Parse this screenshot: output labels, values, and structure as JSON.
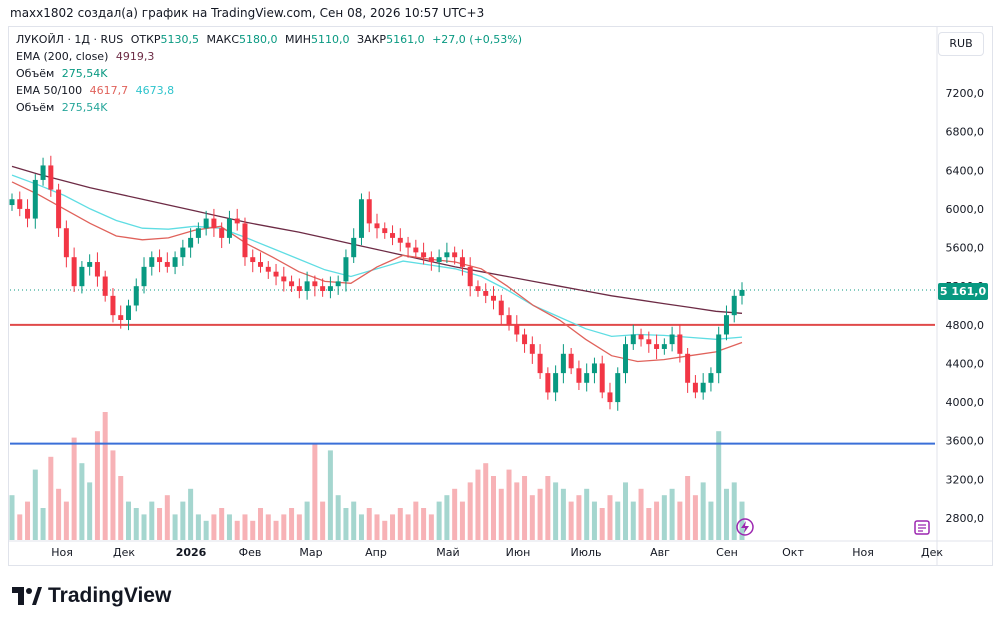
{
  "attribution": "maxx1802 создал(а) график на TradingView.com, Сен 08, 2026 10:57 UTC+3",
  "legend": {
    "symbol": "ЛУКОЙЛ · 1Д · RUS",
    "open_label": "ОТКР",
    "open": "5130,5",
    "high_label": "МАКС",
    "high": "5180,0",
    "low_label": "МИН",
    "low": "5110,0",
    "close_label": "ЗАКР",
    "close": "5161,0",
    "change": "+27,0 (+0,53%)",
    "ema200_label": "EMA (200, close)",
    "ema200_value": "4919,3",
    "volume_label": "Объём",
    "volume_value": "275,54K",
    "ema50_label": "EMA 50/100",
    "ema50_value": "4617,7",
    "ema100_value": "4673,8",
    "volume2_label": "Объём",
    "volume2_value": "275,54K"
  },
  "currency": "RUB",
  "last_price_badge": "5 161,0",
  "footer": {
    "brand": "TradingView"
  },
  "colors": {
    "up": "#089981",
    "down": "#f23645",
    "ema200": "#6d2b45",
    "ema50": "#e0625b",
    "ema100": "#5fdde3",
    "support_red": "#e04a4a",
    "support_blue": "#3a6fd8",
    "volume_up": "#a5d6cf",
    "volume_down": "#f7b2b6"
  },
  "chart_data": {
    "type": "candlestick",
    "ylim": [
      2600,
      7600
    ],
    "y_ticks": [
      "2800,0",
      "3200,0",
      "3600,0",
      "4000,0",
      "4400,0",
      "4800,0",
      "5200,0",
      "5600,0",
      "6000,0",
      "6400,0",
      "6800,0",
      "7200,0"
    ],
    "y_tick_values": [
      2800,
      3200,
      3600,
      4000,
      4400,
      4800,
      5200,
      5600,
      6000,
      6400,
      6800,
      7200
    ],
    "x_labels": [
      "Ноя",
      "Дек",
      "2026",
      "Фев",
      "Мар",
      "Апр",
      "Май",
      "Июн",
      "Июль",
      "Авг",
      "Сен",
      "Окт",
      "Ноя",
      "Дек"
    ],
    "horizontal_lines": [
      {
        "value": 4800,
        "color_key": "support_red"
      },
      {
        "value": 3570,
        "color_key": "support_blue"
      }
    ],
    "last_close": 5161,
    "close_series": [
      6100,
      6000,
      5900,
      6300,
      6450,
      6200,
      5800,
      5500,
      5200,
      5400,
      5450,
      5300,
      5100,
      4900,
      4850,
      5000,
      5200,
      5400,
      5500,
      5450,
      5400,
      5500,
      5600,
      5700,
      5800,
      5900,
      5800,
      5700,
      5900,
      5850,
      5500,
      5450,
      5400,
      5350,
      5300,
      5250,
      5200,
      5150,
      5250,
      5200,
      5150,
      5200,
      5250,
      5500,
      5700,
      6100,
      5850,
      5800,
      5750,
      5700,
      5650,
      5600,
      5550,
      5500,
      5450,
      5500,
      5550,
      5500,
      5400,
      5200,
      5150,
      5100,
      5050,
      4900,
      4800,
      4700,
      4600,
      4500,
      4300,
      4100,
      4300,
      4500,
      4350,
      4200,
      4300,
      4400,
      4100,
      4000,
      4300,
      4600,
      4700,
      4650,
      4600,
      4550,
      4600,
      4700,
      4500,
      4200,
      4100,
      4200,
      4300,
      4700,
      4900,
      5100,
      5161
    ],
    "ema200": [
      6440,
      6360,
      6290,
      6220,
      6160,
      6100,
      6040,
      5980,
      5920,
      5860,
      5810,
      5760,
      5700,
      5640,
      5580,
      5520,
      5460,
      5400,
      5350,
      5300,
      5250,
      5200,
      5150,
      5100,
      5060,
      5020,
      4980,
      4940,
      4919
    ],
    "ema50": [
      6280,
      6150,
      6000,
      5850,
      5720,
      5680,
      5700,
      5780,
      5820,
      5640,
      5500,
      5350,
      5250,
      5230,
      5400,
      5520,
      5480,
      5450,
      5380,
      5200,
      5000,
      4850,
      4650,
      4480,
      4420,
      4440,
      4480,
      4520,
      4617
    ],
    "ema100": [
      6350,
      6250,
      6140,
      6000,
      5880,
      5800,
      5790,
      5820,
      5800,
      5700,
      5590,
      5480,
      5370,
      5300,
      5380,
      5460,
      5420,
      5380,
      5300,
      5160,
      5000,
      4880,
      4760,
      4680,
      4700,
      4690,
      4670,
      4650,
      4673
    ],
    "volume_series": [
      0.35,
      0.2,
      0.3,
      0.55,
      0.25,
      0.65,
      0.4,
      0.3,
      0.8,
      0.6,
      0.45,
      0.85,
      1.0,
      0.7,
      0.5,
      0.3,
      0.25,
      0.2,
      0.3,
      0.25,
      0.35,
      0.2,
      0.3,
      0.4,
      0.2,
      0.15,
      0.2,
      0.25,
      0.2,
      0.15,
      0.2,
      0.15,
      0.25,
      0.2,
      0.15,
      0.2,
      0.25,
      0.2,
      0.3,
      0.75,
      0.3,
      0.7,
      0.35,
      0.25,
      0.3,
      0.2,
      0.25,
      0.2,
      0.15,
      0.2,
      0.25,
      0.2,
      0.3,
      0.25,
      0.2,
      0.3,
      0.35,
      0.4,
      0.3,
      0.45,
      0.55,
      0.6,
      0.5,
      0.4,
      0.55,
      0.45,
      0.5,
      0.35,
      0.4,
      0.5,
      0.45,
      0.4,
      0.3,
      0.35,
      0.4,
      0.3,
      0.25,
      0.35,
      0.3,
      0.45,
      0.3,
      0.4,
      0.25,
      0.3,
      0.35,
      0.4,
      0.3,
      0.5,
      0.35,
      0.45,
      0.3,
      0.85,
      0.4,
      0.45,
      0.3
    ]
  }
}
